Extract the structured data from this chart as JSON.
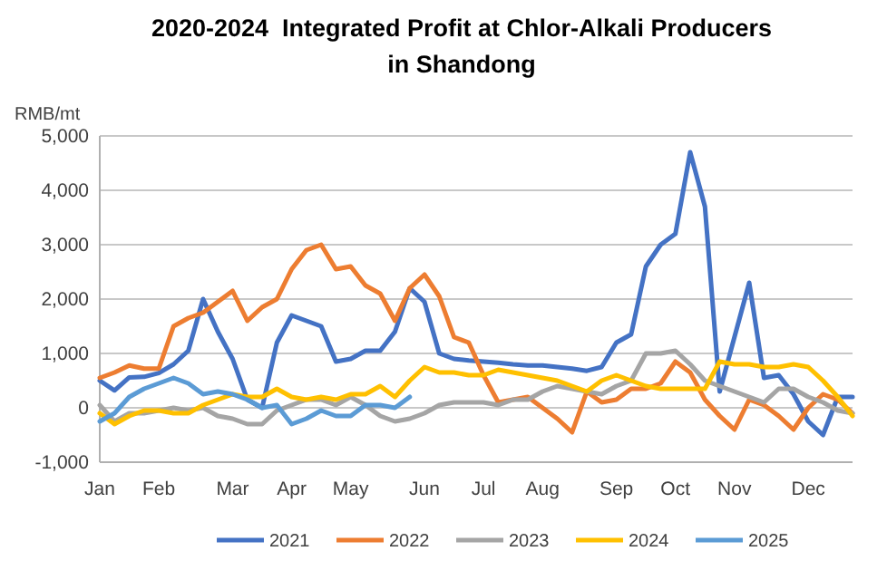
{
  "chart_data": {
    "type": "line",
    "title": "2020-2024  Integrated Profit at Chlor-Alkali Producers in Shandong",
    "ylabel": "RMB/mt",
    "categories": [
      "Jan",
      null,
      null,
      null,
      "Feb",
      null,
      null,
      null,
      null,
      "Mar",
      null,
      null,
      null,
      "Apr",
      null,
      null,
      null,
      "May",
      null,
      null,
      null,
      null,
      "Jun",
      null,
      null,
      null,
      "Jul",
      null,
      null,
      null,
      "Aug",
      null,
      null,
      null,
      null,
      "Sep",
      null,
      null,
      null,
      "Oct",
      null,
      null,
      null,
      "Nov",
      null,
      null,
      null,
      null,
      "Dec",
      null,
      null,
      null
    ],
    "ylim": [
      -1000,
      5000
    ],
    "yticks": [
      {
        "value": -1000,
        "label": "-1,000"
      },
      0,
      {
        "value": 1000,
        "label": "1,000"
      },
      {
        "value": 2000,
        "label": "2,000"
      },
      {
        "value": 3000,
        "label": "3,000"
      },
      {
        "value": 4000,
        "label": "4,000"
      },
      {
        "value": 5000,
        "label": "5,000"
      }
    ],
    "grid": "y",
    "legend": "bottom",
    "line_style": "solid",
    "marker": "none",
    "series": [
      {
        "name": "2021",
        "color": "#4472c4",
        "values": [
          500,
          320,
          560,
          570,
          640,
          800,
          1050,
          2000,
          1400,
          900,
          150,
          0,
          1200,
          1700,
          1600,
          1500,
          850,
          900,
          1050,
          1050,
          1400,
          2200,
          1950,
          1000,
          900,
          870,
          850,
          830,
          800,
          780,
          780,
          750,
          720,
          680,
          750,
          1200,
          1350,
          2600,
          3000,
          3200,
          4700,
          3700,
          300,
          1300,
          2300,
          550,
          600,
          250,
          -250,
          -500,
          200,
          200
        ]
      },
      {
        "name": "2022",
        "color": "#ed7d31",
        "values": [
          550,
          650,
          780,
          720,
          720,
          1500,
          1650,
          1750,
          1950,
          2150,
          1600,
          1850,
          2000,
          2550,
          2900,
          3000,
          2550,
          2600,
          2250,
          2100,
          1600,
          2200,
          2450,
          2050,
          1300,
          1200,
          600,
          100,
          150,
          200,
          0,
          -200,
          -450,
          300,
          100,
          150,
          350,
          350,
          450,
          850,
          650,
          150,
          -150,
          -400,
          150,
          50,
          -150,
          -400,
          0,
          250,
          150,
          -100
        ]
      },
      {
        "name": "2023",
        "color": "#a5a5a5",
        "values": [
          50,
          -250,
          -100,
          -100,
          -50,
          0,
          -50,
          0,
          -150,
          -200,
          -300,
          -300,
          -50,
          50,
          150,
          150,
          50,
          200,
          50,
          -150,
          -250,
          -200,
          -100,
          50,
          100,
          100,
          100,
          50,
          150,
          150,
          300,
          400,
          350,
          300,
          250,
          400,
          500,
          1000,
          1000,
          1050,
          800,
          500,
          400,
          300,
          200,
          100,
          350,
          350,
          200,
          100,
          -50,
          -100
        ]
      },
      {
        "name": "2024",
        "color": "#ffc000",
        "values": [
          -100,
          -300,
          -150,
          -50,
          -50,
          -100,
          -100,
          50,
          150,
          250,
          200,
          200,
          350,
          200,
          150,
          200,
          150,
          250,
          250,
          400,
          200,
          500,
          750,
          650,
          650,
          600,
          600,
          700,
          650,
          600,
          550,
          500,
          400,
          300,
          500,
          600,
          500,
          400,
          350,
          350,
          350,
          350,
          850,
          800,
          800,
          750,
          750,
          800,
          750,
          500,
          200,
          -150
        ]
      },
      {
        "name": "2025",
        "color": "#5b9bd5",
        "values": [
          -250,
          -100,
          200,
          350,
          450,
          550,
          450,
          250,
          300,
          250,
          150,
          0,
          50,
          -300,
          -200,
          -50,
          -150,
          -150,
          50,
          50,
          0,
          200,
          null,
          null,
          null,
          null,
          null,
          null,
          null,
          null,
          null,
          null,
          null,
          null,
          null,
          null,
          null,
          null,
          null,
          null,
          null,
          null,
          null,
          null,
          null,
          null,
          null,
          null,
          null,
          null,
          null,
          null
        ]
      }
    ]
  }
}
